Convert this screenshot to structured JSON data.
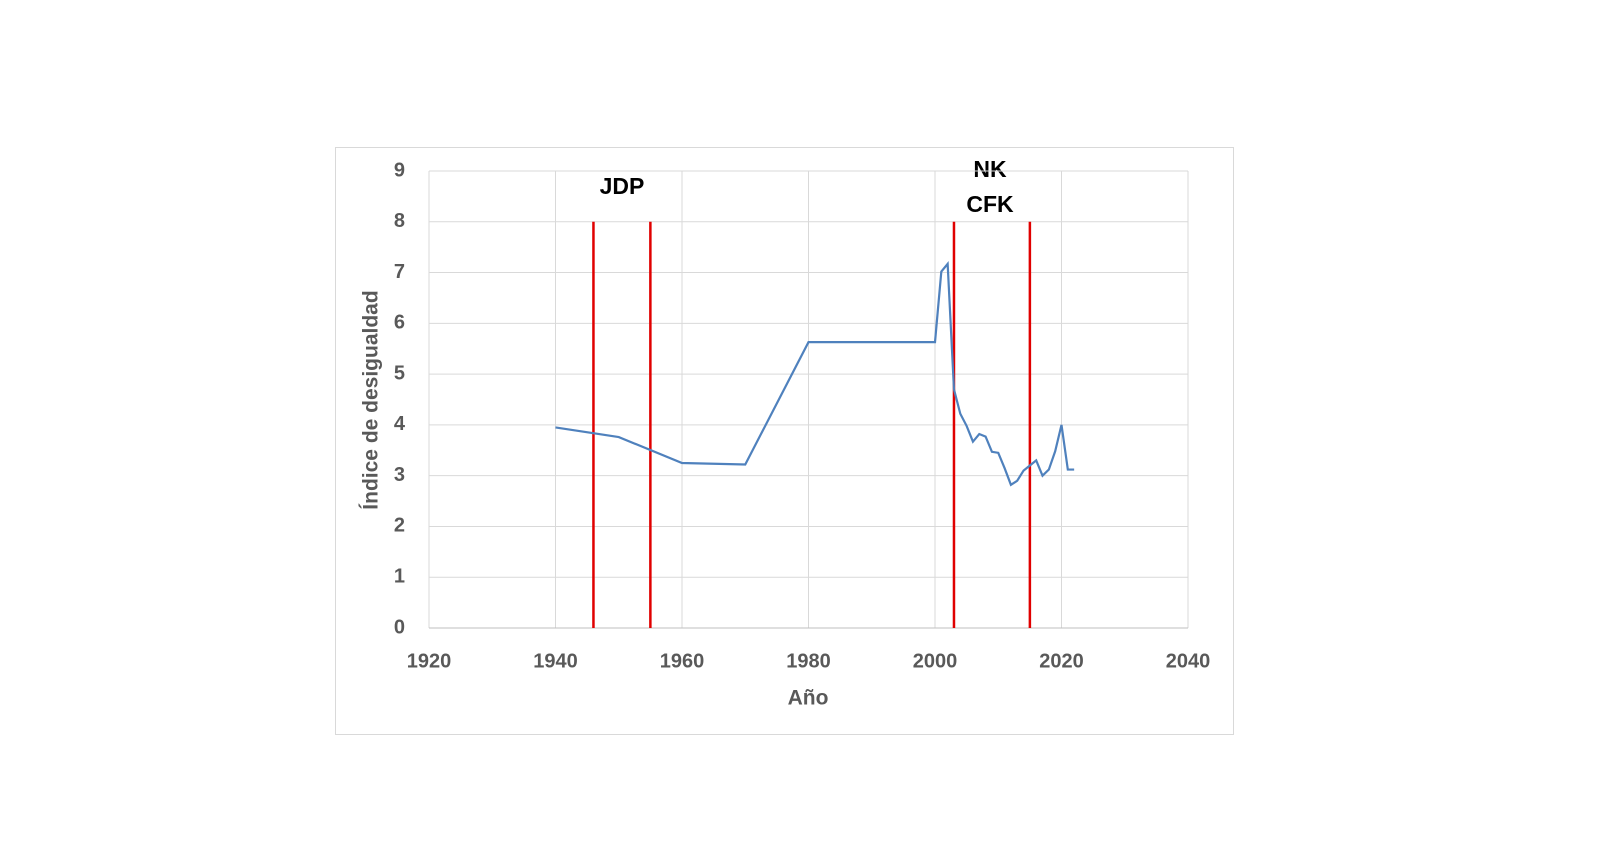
{
  "chart_data": {
    "type": "line",
    "x_label": "Año",
    "y_label": "Índice de desigualdad",
    "x": [
      1940,
      1950,
      1960,
      1970,
      1980,
      2000,
      2001,
      2002,
      2003,
      2004,
      2005,
      2006,
      2007,
      2008,
      2009,
      2010,
      2011,
      2012,
      2013,
      2014,
      2015,
      2016,
      2017,
      2018,
      2019,
      2020,
      2021,
      2022
    ],
    "series": [
      {
        "color": "#4f81bd",
        "values": [
          3.95,
          3.76,
          3.25,
          3.22,
          5.63,
          5.63,
          7.02,
          7.17,
          4.7,
          4.22,
          3.98,
          3.67,
          3.82,
          3.77,
          3.47,
          3.45,
          3.15,
          2.82,
          2.9,
          3.1,
          3.2,
          3.3,
          3.0,
          3.12,
          3.48,
          4.0,
          3.12,
          3.12
        ]
      }
    ],
    "xlim": [
      1920,
      2040
    ],
    "xticks": [
      1920,
      1940,
      1960,
      1980,
      2000,
      2020,
      2040
    ],
    "ylim": [
      0,
      9
    ],
    "yticks": [
      0,
      1,
      2,
      3,
      4,
      5,
      6,
      7,
      8,
      9
    ],
    "grid": true,
    "reference_lines": {
      "color": "#e00000",
      "x": [
        1946,
        1955,
        2003,
        2015
      ],
      "top": 8
    },
    "annotations": [
      "JDP",
      "NK",
      "CFK"
    ]
  }
}
